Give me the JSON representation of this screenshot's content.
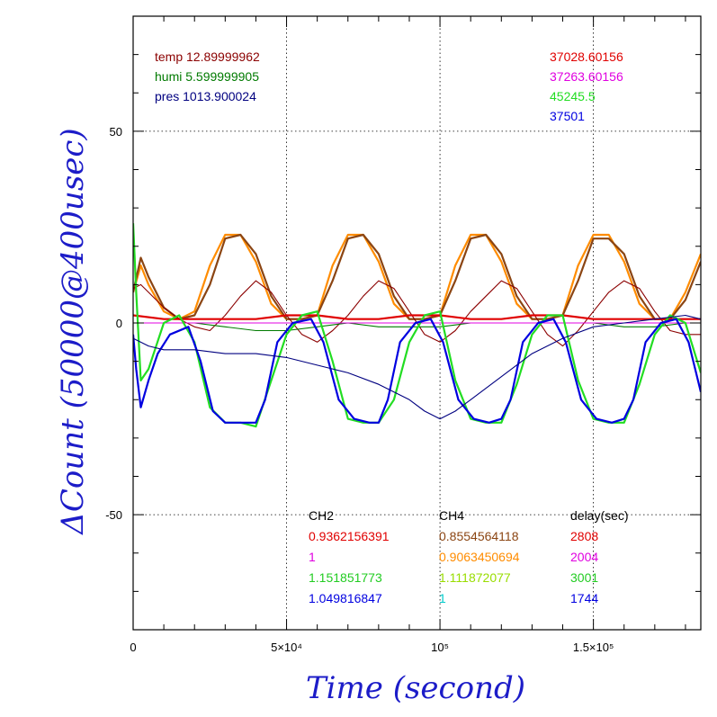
{
  "chart_data": {
    "type": "line",
    "xlabel": "Time (second)",
    "ylabel": "ΔCount (50000@400usec)",
    "xlim": [
      0,
      185000
    ],
    "ylim": [
      -80,
      80
    ],
    "x_ticks": [
      {
        "value": 0,
        "label": "0"
      },
      {
        "value": 50000,
        "label": "5×10⁴"
      },
      {
        "value": 100000,
        "label": "10⁵"
      },
      {
        "value": 150000,
        "label": "1.5×10⁵"
      }
    ],
    "y_ticks": [
      {
        "value": 50,
        "label": "50"
      },
      {
        "value": 0,
        "label": "0"
      },
      {
        "value": -50,
        "label": "-50"
      }
    ],
    "grid": true,
    "env_legend": [
      {
        "text": "temp 12.89999962",
        "color": "#8b0000"
      },
      {
        "text": "humi 5.599999905",
        "color": "#007a00"
      },
      {
        "text": "pres 1013.900024",
        "color": "#000080"
      }
    ],
    "channel_legend": [
      {
        "text": "37028.60156",
        "color": "#e00000"
      },
      {
        "text": "37263.60156",
        "color": "#e000e0"
      },
      {
        "text": "45245.5",
        "color": "#22dd22"
      },
      {
        "text": "37501",
        "color": "#0000e0"
      }
    ],
    "table": {
      "headers": [
        "CH2",
        "CH4",
        "delay(sec)"
      ],
      "rows": [
        {
          "cells": [
            "0.9362156391",
            "0.8554564118",
            "2808"
          ],
          "colors": [
            "#e00000",
            "#8b4513",
            "#e00000"
          ]
        },
        {
          "cells": [
            "1",
            "0.9063450694",
            "2004"
          ],
          "colors": [
            "#e000e0",
            "#ff8c00",
            "#e000e0"
          ]
        },
        {
          "cells": [
            "1.151851773",
            "1.111872077",
            "3001"
          ],
          "colors": [
            "#22cc22",
            "#99dd00",
            "#22cc22"
          ]
        },
        {
          "cells": [
            "1.049816847",
            "1",
            "1744"
          ],
          "colors": [
            "#0000e0",
            "#00cccc",
            "#0000e0"
          ]
        }
      ]
    },
    "period_seconds": 37000,
    "series": [
      {
        "color": "#ff8c00",
        "points": [
          [
            0,
            8
          ],
          [
            2500,
            15
          ],
          [
            5000,
            10
          ],
          [
            10000,
            3
          ],
          [
            15000,
            1
          ],
          [
            20000,
            3
          ],
          [
            25000,
            15
          ],
          [
            30000,
            23
          ],
          [
            35000,
            23
          ],
          [
            40000,
            16
          ],
          [
            45000,
            5
          ],
          [
            50000,
            1
          ],
          [
            55000,
            1
          ],
          [
            60000,
            2
          ],
          [
            65000,
            15
          ],
          [
            70000,
            23
          ],
          [
            75000,
            23
          ],
          [
            80000,
            16
          ],
          [
            85000,
            5
          ],
          [
            90000,
            1
          ],
          [
            95000,
            1
          ],
          [
            100000,
            2
          ],
          [
            105000,
            15
          ],
          [
            110000,
            23
          ],
          [
            115000,
            23
          ],
          [
            120000,
            16
          ],
          [
            125000,
            5
          ],
          [
            130000,
            1
          ],
          [
            135000,
            1
          ],
          [
            140000,
            2
          ],
          [
            145000,
            15
          ],
          [
            150000,
            23
          ],
          [
            155000,
            23
          ],
          [
            160000,
            16
          ],
          [
            165000,
            5
          ],
          [
            170000,
            1
          ],
          [
            175000,
            1
          ],
          [
            180000,
            8
          ],
          [
            185000,
            18
          ]
        ]
      },
      {
        "color": "#8b4513",
        "points": [
          [
            0,
            8
          ],
          [
            2500,
            17
          ],
          [
            5000,
            12
          ],
          [
            10000,
            4
          ],
          [
            15000,
            1
          ],
          [
            20000,
            2
          ],
          [
            25000,
            10
          ],
          [
            30000,
            22
          ],
          [
            35000,
            23
          ],
          [
            40000,
            18
          ],
          [
            45000,
            7
          ],
          [
            50000,
            1
          ],
          [
            55000,
            1
          ],
          [
            60000,
            2
          ],
          [
            65000,
            11
          ],
          [
            70000,
            22
          ],
          [
            75000,
            23
          ],
          [
            80000,
            18
          ],
          [
            85000,
            7
          ],
          [
            90000,
            1
          ],
          [
            95000,
            1
          ],
          [
            100000,
            2
          ],
          [
            105000,
            11
          ],
          [
            110000,
            22
          ],
          [
            115000,
            23
          ],
          [
            120000,
            18
          ],
          [
            125000,
            7
          ],
          [
            130000,
            1
          ],
          [
            135000,
            1
          ],
          [
            140000,
            2
          ],
          [
            145000,
            11
          ],
          [
            150000,
            22
          ],
          [
            155000,
            22
          ],
          [
            160000,
            18
          ],
          [
            165000,
            7
          ],
          [
            170000,
            1
          ],
          [
            175000,
            1
          ],
          [
            180000,
            6
          ],
          [
            185000,
            16
          ]
        ]
      },
      {
        "color": "#8b0000",
        "points": [
          [
            0,
            9
          ],
          [
            2500,
            10
          ],
          [
            5000,
            8
          ],
          [
            10000,
            4
          ],
          [
            15000,
            1
          ],
          [
            20000,
            -1
          ],
          [
            25000,
            -2
          ],
          [
            30000,
            2
          ],
          [
            35000,
            7
          ],
          [
            40000,
            11
          ],
          [
            45000,
            8
          ],
          [
            50000,
            2
          ],
          [
            55000,
            -3
          ],
          [
            60000,
            -5
          ],
          [
            65000,
            -2
          ],
          [
            70000,
            2
          ],
          [
            75000,
            7
          ],
          [
            80000,
            11
          ],
          [
            85000,
            9
          ],
          [
            90000,
            3
          ],
          [
            95000,
            -3
          ],
          [
            100000,
            -5
          ],
          [
            105000,
            -2
          ],
          [
            110000,
            3
          ],
          [
            115000,
            7
          ],
          [
            120000,
            11
          ],
          [
            125000,
            9
          ],
          [
            130000,
            3
          ],
          [
            135000,
            -3
          ],
          [
            140000,
            -6
          ],
          [
            145000,
            -2
          ],
          [
            150000,
            3
          ],
          [
            155000,
            8
          ],
          [
            160000,
            11
          ],
          [
            165000,
            9
          ],
          [
            170000,
            3
          ],
          [
            175000,
            -2
          ],
          [
            180000,
            -3
          ],
          [
            185000,
            -3
          ]
        ]
      },
      {
        "color": "#007a00",
        "points": [
          [
            0,
            0
          ],
          [
            10000,
            0
          ],
          [
            20000,
            0
          ],
          [
            30000,
            -1
          ],
          [
            40000,
            -2
          ],
          [
            50000,
            -2
          ],
          [
            60000,
            -1
          ],
          [
            70000,
            0
          ],
          [
            80000,
            -1
          ],
          [
            90000,
            -1
          ],
          [
            100000,
            -1
          ],
          [
            110000,
            0
          ],
          [
            120000,
            0
          ],
          [
            130000,
            0
          ],
          [
            140000,
            0
          ],
          [
            150000,
            0
          ],
          [
            160000,
            -1
          ],
          [
            170000,
            -1
          ],
          [
            180000,
            0
          ],
          [
            185000,
            0
          ]
        ]
      },
      {
        "color": "#e00000",
        "points": [
          [
            0,
            2
          ],
          [
            10000,
            1
          ],
          [
            20000,
            1
          ],
          [
            30000,
            1
          ],
          [
            40000,
            1
          ],
          [
            50000,
            2
          ],
          [
            60000,
            2
          ],
          [
            70000,
            1
          ],
          [
            80000,
            1
          ],
          [
            90000,
            2
          ],
          [
            100000,
            2
          ],
          [
            110000,
            1
          ],
          [
            120000,
            1
          ],
          [
            130000,
            2
          ],
          [
            140000,
            2
          ],
          [
            150000,
            1
          ],
          [
            160000,
            1
          ],
          [
            170000,
            1
          ],
          [
            180000,
            1
          ],
          [
            185000,
            1
          ]
        ]
      },
      {
        "color": "#e000e0",
        "points": [
          [
            0,
            0
          ],
          [
            20000,
            0
          ],
          [
            40000,
            0
          ],
          [
            60000,
            0
          ],
          [
            80000,
            0
          ],
          [
            100000,
            0
          ],
          [
            120000,
            0
          ],
          [
            140000,
            0
          ],
          [
            160000,
            0
          ],
          [
            185000,
            0
          ]
        ]
      },
      {
        "color": "#22dd22",
        "points": [
          [
            0,
            26
          ],
          [
            1000,
            8
          ],
          [
            2500,
            -15
          ],
          [
            5000,
            -12
          ],
          [
            10000,
            0
          ],
          [
            15000,
            2
          ],
          [
            20000,
            -5
          ],
          [
            25000,
            -22
          ],
          [
            30000,
            -26
          ],
          [
            35000,
            -26
          ],
          [
            40000,
            -27
          ],
          [
            45000,
            -15
          ],
          [
            50000,
            -3
          ],
          [
            55000,
            2
          ],
          [
            60000,
            3
          ],
          [
            65000,
            -10
          ],
          [
            70000,
            -25
          ],
          [
            75000,
            -26
          ],
          [
            80000,
            -26
          ],
          [
            85000,
            -20
          ],
          [
            90000,
            -5
          ],
          [
            95000,
            2
          ],
          [
            100000,
            3
          ],
          [
            105000,
            -15
          ],
          [
            110000,
            -25
          ],
          [
            115000,
            -26
          ],
          [
            120000,
            -26
          ],
          [
            125000,
            -16
          ],
          [
            130000,
            -3
          ],
          [
            135000,
            2
          ],
          [
            140000,
            2
          ],
          [
            145000,
            -15
          ],
          [
            150000,
            -25
          ],
          [
            155000,
            -26
          ],
          [
            160000,
            -26
          ],
          [
            165000,
            -16
          ],
          [
            170000,
            -3
          ],
          [
            175000,
            2
          ],
          [
            180000,
            0
          ],
          [
            185000,
            -13
          ]
        ]
      },
      {
        "color": "#0000e0",
        "points": [
          [
            0,
            -3
          ],
          [
            1000,
            -12
          ],
          [
            2500,
            -22
          ],
          [
            5000,
            -15
          ],
          [
            8000,
            -8
          ],
          [
            12000,
            -3
          ],
          [
            18000,
            -1
          ],
          [
            22000,
            -10
          ],
          [
            26000,
            -23
          ],
          [
            30000,
            -26
          ],
          [
            35000,
            -26
          ],
          [
            40000,
            -26
          ],
          [
            43000,
            -20
          ],
          [
            47000,
            -5
          ],
          [
            52000,
            0
          ],
          [
            58000,
            1
          ],
          [
            62000,
            -5
          ],
          [
            67000,
            -20
          ],
          [
            72000,
            -25
          ],
          [
            77000,
            -26
          ],
          [
            80000,
            -26
          ],
          [
            83000,
            -20
          ],
          [
            87000,
            -5
          ],
          [
            92000,
            0
          ],
          [
            97000,
            1
          ],
          [
            101000,
            -5
          ],
          [
            106000,
            -20
          ],
          [
            111000,
            -25
          ],
          [
            116000,
            -26
          ],
          [
            120000,
            -25
          ],
          [
            123000,
            -20
          ],
          [
            127000,
            -5
          ],
          [
            132000,
            0
          ],
          [
            137000,
            1
          ],
          [
            141000,
            -5
          ],
          [
            146000,
            -20
          ],
          [
            151000,
            -25
          ],
          [
            156000,
            -26
          ],
          [
            160000,
            -25
          ],
          [
            163000,
            -20
          ],
          [
            167000,
            -5
          ],
          [
            172000,
            0
          ],
          [
            177000,
            1
          ],
          [
            181000,
            -5
          ],
          [
            185000,
            -18
          ]
        ]
      },
      {
        "color": "#000080",
        "points": [
          [
            0,
            -4
          ],
          [
            5000,
            -6
          ],
          [
            10000,
            -7
          ],
          [
            20000,
            -7
          ],
          [
            30000,
            -8
          ],
          [
            40000,
            -8
          ],
          [
            50000,
            -9
          ],
          [
            60000,
            -11
          ],
          [
            70000,
            -13
          ],
          [
            80000,
            -16
          ],
          [
            90000,
            -20
          ],
          [
            95000,
            -23
          ],
          [
            100000,
            -25
          ],
          [
            105000,
            -23
          ],
          [
            110000,
            -20
          ],
          [
            120000,
            -14
          ],
          [
            130000,
            -8
          ],
          [
            140000,
            -4
          ],
          [
            150000,
            -1
          ],
          [
            160000,
            0
          ],
          [
            170000,
            1
          ],
          [
            180000,
            2
          ],
          [
            185000,
            1
          ]
        ]
      }
    ]
  }
}
